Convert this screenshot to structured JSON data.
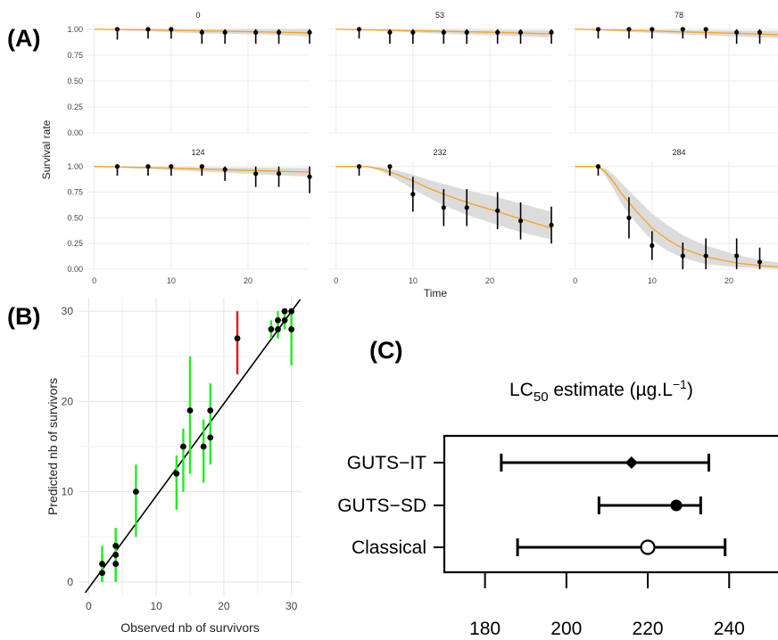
{
  "panel_labels": {
    "a": "(A)",
    "b": "(B)",
    "c": "(C)"
  },
  "colors": {
    "fit_line": "#f5a623",
    "ci_band": "#dcdcdc",
    "point": "#000000",
    "ci_green": "#22ee22",
    "ci_red": "#e8151b",
    "grid": "#ececec"
  },
  "chart_data": [
    {
      "id": "A",
      "type": "line",
      "xlabel": "Time",
      "ylabel": "Survival rate",
      "xlim": [
        -1,
        28
      ],
      "ylim": [
        0,
        1.05
      ],
      "x_ticks": [
        0,
        10,
        20
      ],
      "y_ticks": [
        "0.00",
        "0.25",
        "0.50",
        "0.75",
        "1.00"
      ],
      "facets": [
        {
          "label": "0",
          "obs": [
            [
              3,
              1.0
            ],
            [
              7,
              1.0
            ],
            [
              10,
              1.0
            ],
            [
              14,
              0.97
            ],
            [
              17,
              0.97
            ],
            [
              21,
              0.97
            ],
            [
              24,
              0.97
            ],
            [
              28,
              0.97
            ]
          ],
          "err": [
            0.1,
            0.09,
            0.09,
            0.11,
            0.11,
            0.11,
            0.11,
            0.11
          ],
          "curve": [
            [
              0,
              1.0
            ],
            [
              7,
              0.995
            ],
            [
              14,
              0.985
            ],
            [
              21,
              0.975
            ],
            [
              28,
              0.965
            ]
          ],
          "band_lo": [
            [
              0,
              1.0
            ],
            [
              7,
              0.98
            ],
            [
              14,
              0.96
            ],
            [
              21,
              0.95
            ],
            [
              28,
              0.93
            ]
          ],
          "band_hi": [
            [
              0,
              1.0
            ],
            [
              28,
              1.0
            ]
          ]
        },
        {
          "label": "53",
          "obs": [
            [
              3,
              1.0
            ],
            [
              7,
              0.97
            ],
            [
              10,
              0.97
            ],
            [
              14,
              0.97
            ],
            [
              17,
              0.97
            ],
            [
              21,
              0.97
            ],
            [
              24,
              0.97
            ],
            [
              28,
              0.97
            ]
          ],
          "err": [
            0.09,
            0.11,
            0.11,
            0.11,
            0.11,
            0.11,
            0.11,
            0.11
          ],
          "curve": [
            [
              0,
              1.0
            ],
            [
              7,
              0.99
            ],
            [
              14,
              0.98
            ],
            [
              21,
              0.97
            ],
            [
              28,
              0.955
            ]
          ],
          "band_lo": [
            [
              0,
              1.0
            ],
            [
              7,
              0.98
            ],
            [
              14,
              0.955
            ],
            [
              21,
              0.94
            ],
            [
              28,
              0.92
            ]
          ],
          "band_hi": [
            [
              0,
              1.0
            ],
            [
              28,
              0.99
            ]
          ]
        },
        {
          "label": "78",
          "obs": [
            [
              3,
              1.0
            ],
            [
              7,
              1.0
            ],
            [
              10,
              1.0
            ],
            [
              14,
              1.0
            ],
            [
              17,
              1.0
            ],
            [
              21,
              0.97
            ],
            [
              24,
              0.97
            ]
          ],
          "err": [
            0.09,
            0.09,
            0.09,
            0.09,
            0.09,
            0.11,
            0.11
          ],
          "curve": [
            [
              0,
              1.0
            ],
            [
              7,
              0.99
            ],
            [
              14,
              0.975
            ],
            [
              21,
              0.96
            ],
            [
              28,
              0.945
            ]
          ],
          "band_lo": [
            [
              0,
              1.0
            ],
            [
              7,
              0.975
            ],
            [
              14,
              0.95
            ],
            [
              21,
              0.93
            ],
            [
              28,
              0.91
            ]
          ],
          "band_hi": [
            [
              0,
              1.0
            ],
            [
              28,
              0.985
            ]
          ]
        },
        {
          "label": "124",
          "obs": [
            [
              3,
              1.0
            ],
            [
              7,
              1.0
            ],
            [
              10,
              1.0
            ],
            [
              14,
              1.0
            ],
            [
              17,
              0.97
            ],
            [
              21,
              0.93
            ],
            [
              24,
              0.93
            ],
            [
              28,
              0.9
            ]
          ],
          "err": [
            0.09,
            0.09,
            0.09,
            0.09,
            0.11,
            0.13,
            0.13,
            0.16
          ],
          "curve": [
            [
              0,
              1.0
            ],
            [
              7,
              0.99
            ],
            [
              14,
              0.975
            ],
            [
              21,
              0.96
            ],
            [
              28,
              0.945
            ]
          ],
          "band_lo": [
            [
              0,
              1.0
            ],
            [
              7,
              0.975
            ],
            [
              14,
              0.95
            ],
            [
              21,
              0.925
            ],
            [
              28,
              0.9
            ]
          ],
          "band_hi": [
            [
              0,
              1.0
            ],
            [
              28,
              0.985
            ]
          ]
        },
        {
          "label": "232",
          "obs": [
            [
              3,
              1.0
            ],
            [
              7,
              1.0
            ],
            [
              10,
              0.73
            ],
            [
              14,
              0.6
            ],
            [
              17,
              0.6
            ],
            [
              21,
              0.57
            ],
            [
              24,
              0.47
            ],
            [
              28,
              0.43
            ]
          ],
          "err": [
            0.09,
            0.09,
            0.17,
            0.18,
            0.18,
            0.18,
            0.18,
            0.18
          ],
          "curve": [
            [
              0,
              1.0
            ],
            [
              4,
              1.0
            ],
            [
              6,
              0.97
            ],
            [
              8,
              0.92
            ],
            [
              10,
              0.86
            ],
            [
              12,
              0.79
            ],
            [
              14,
              0.73
            ],
            [
              17,
              0.65
            ],
            [
              21,
              0.56
            ],
            [
              24,
              0.49
            ],
            [
              28,
              0.4
            ]
          ],
          "band_lo": [
            [
              0,
              1.0
            ],
            [
              4,
              1.0
            ],
            [
              6,
              0.95
            ],
            [
              8,
              0.87
            ],
            [
              10,
              0.78
            ],
            [
              12,
              0.7
            ],
            [
              14,
              0.62
            ],
            [
              17,
              0.53
            ],
            [
              21,
              0.43
            ],
            [
              24,
              0.36
            ],
            [
              28,
              0.29
            ]
          ],
          "band_hi": [
            [
              0,
              1.0
            ],
            [
              4,
              1.0
            ],
            [
              6,
              0.99
            ],
            [
              8,
              0.96
            ],
            [
              10,
              0.92
            ],
            [
              12,
              0.87
            ],
            [
              14,
              0.83
            ],
            [
              17,
              0.77
            ],
            [
              21,
              0.7
            ],
            [
              24,
              0.64
            ],
            [
              28,
              0.56
            ]
          ]
        },
        {
          "label": "284",
          "obs": [
            [
              3,
              1.0
            ],
            [
              7,
              0.5
            ],
            [
              10,
              0.23
            ],
            [
              14,
              0.13
            ],
            [
              17,
              0.13
            ],
            [
              21,
              0.13
            ],
            [
              24,
              0.07
            ]
          ],
          "err": [
            0.09,
            0.2,
            0.14,
            0.13,
            0.17,
            0.17,
            0.14
          ],
          "curve": [
            [
              0,
              1.0
            ],
            [
              3,
              1.0
            ],
            [
              4,
              0.94
            ],
            [
              5,
              0.85
            ],
            [
              6,
              0.74
            ],
            [
              8,
              0.56
            ],
            [
              10,
              0.4
            ],
            [
              12,
              0.29
            ],
            [
              14,
              0.2
            ],
            [
              17,
              0.12
            ],
            [
              21,
              0.06
            ],
            [
              24,
              0.035
            ],
            [
              28,
              0.015
            ]
          ],
          "band_lo": [
            [
              0,
              1.0
            ],
            [
              3,
              1.0
            ],
            [
              4,
              0.9
            ],
            [
              5,
              0.78
            ],
            [
              6,
              0.64
            ],
            [
              8,
              0.44
            ],
            [
              10,
              0.28
            ],
            [
              12,
              0.18
            ],
            [
              14,
              0.11
            ],
            [
              17,
              0.05
            ],
            [
              21,
              0.02
            ],
            [
              24,
              0.01
            ],
            [
              28,
              0.0
            ]
          ],
          "band_hi": [
            [
              0,
              1.0
            ],
            [
              3,
              1.0
            ],
            [
              4,
              0.98
            ],
            [
              5,
              0.92
            ],
            [
              6,
              0.84
            ],
            [
              8,
              0.69
            ],
            [
              10,
              0.54
            ],
            [
              12,
              0.43
            ],
            [
              14,
              0.33
            ],
            [
              17,
              0.23
            ],
            [
              21,
              0.14
            ],
            [
              24,
              0.09
            ],
            [
              28,
              0.05
            ]
          ]
        }
      ]
    },
    {
      "id": "B",
      "type": "scatter",
      "xlabel": "Observed nb of survivors",
      "ylabel": "Predicted nb of survivors",
      "xlim": [
        -1.5,
        31.5
      ],
      "ylim": [
        -1.5,
        31.5
      ],
      "x_ticks": [
        0,
        10,
        20,
        30
      ],
      "y_ticks": [
        0,
        10,
        20,
        30
      ],
      "identity_line": true,
      "points": [
        {
          "x": 2,
          "y": 2,
          "lo": 0,
          "hi": 4,
          "c": "green"
        },
        {
          "x": 2,
          "y": 1,
          "lo": 0,
          "hi": 3,
          "c": "green"
        },
        {
          "x": 4,
          "y": 4,
          "lo": 1,
          "hi": 6,
          "c": "green"
        },
        {
          "x": 4,
          "y": 3,
          "lo": 0,
          "hi": 5,
          "c": "green"
        },
        {
          "x": 4,
          "y": 2,
          "lo": 0,
          "hi": 4,
          "c": "green"
        },
        {
          "x": 7,
          "y": 10,
          "lo": 5,
          "hi": 13,
          "c": "green"
        },
        {
          "x": 13,
          "y": 12,
          "lo": 8,
          "hi": 14,
          "c": "green"
        },
        {
          "x": 14,
          "y": 15,
          "lo": 10,
          "hi": 17,
          "c": "green"
        },
        {
          "x": 15,
          "y": 19,
          "lo": 12,
          "hi": 25,
          "c": "green"
        },
        {
          "x": 17,
          "y": 15,
          "lo": 11,
          "hi": 18,
          "c": "green"
        },
        {
          "x": 18,
          "y": 19,
          "lo": 15,
          "hi": 22,
          "c": "green"
        },
        {
          "x": 18,
          "y": 16,
          "lo": 13,
          "hi": 18,
          "c": "green"
        },
        {
          "x": 22,
          "y": 27,
          "lo": 23,
          "hi": 30,
          "c": "red"
        },
        {
          "x": 27,
          "y": 28,
          "lo": 27,
          "hi": 29,
          "c": "green"
        },
        {
          "x": 28,
          "y": 29,
          "lo": 27,
          "hi": 30,
          "c": "green"
        },
        {
          "x": 28,
          "y": 28,
          "lo": 27,
          "hi": 29,
          "c": "green"
        },
        {
          "x": 29,
          "y": 30,
          "lo": 28,
          "hi": 30,
          "c": "green"
        },
        {
          "x": 29,
          "y": 29,
          "lo": 28,
          "hi": 30,
          "c": "green"
        },
        {
          "x": 30,
          "y": 30,
          "lo": 27,
          "hi": 30,
          "c": "green"
        },
        {
          "x": 30,
          "y": 28,
          "lo": 24,
          "hi": 30,
          "c": "green"
        }
      ]
    },
    {
      "id": "C",
      "type": "scatter",
      "title_main": "LC",
      "title_sub": "50",
      "title_rest": " estimate (µg.L",
      "title_sup": "−1",
      "title_end": ")",
      "xlim": [
        170,
        252
      ],
      "x_ticks": [
        180,
        200,
        220,
        240
      ],
      "rows": [
        {
          "label": "GUTS−IT",
          "est": 216,
          "lo": 184,
          "hi": 235,
          "marker": "diamond"
        },
        {
          "label": "GUTS−SD",
          "est": 227,
          "lo": 208,
          "hi": 233,
          "marker": "filled-circle"
        },
        {
          "label": "Classical",
          "est": 220,
          "lo": 188,
          "hi": 239,
          "marker": "open-circle"
        }
      ]
    }
  ]
}
